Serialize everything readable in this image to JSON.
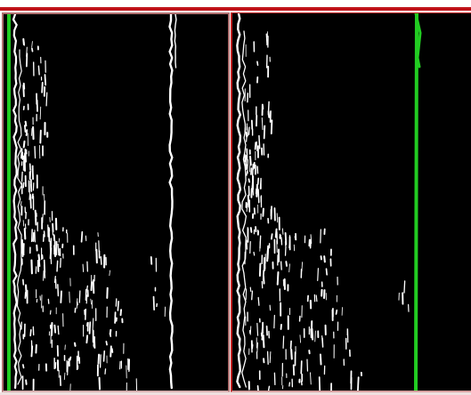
{
  "image": {
    "background": "#ffffff",
    "frame_color": "#c0141a",
    "panel_background": "#000000",
    "detection_line_color": "#22cc22",
    "edge_color": "#ffffff"
  },
  "panels": [
    {
      "name": "left-panel",
      "detected_lines": [
        "left-edge"
      ]
    },
    {
      "name": "right-panel",
      "detected_lines": [
        "right-edge"
      ]
    }
  ]
}
